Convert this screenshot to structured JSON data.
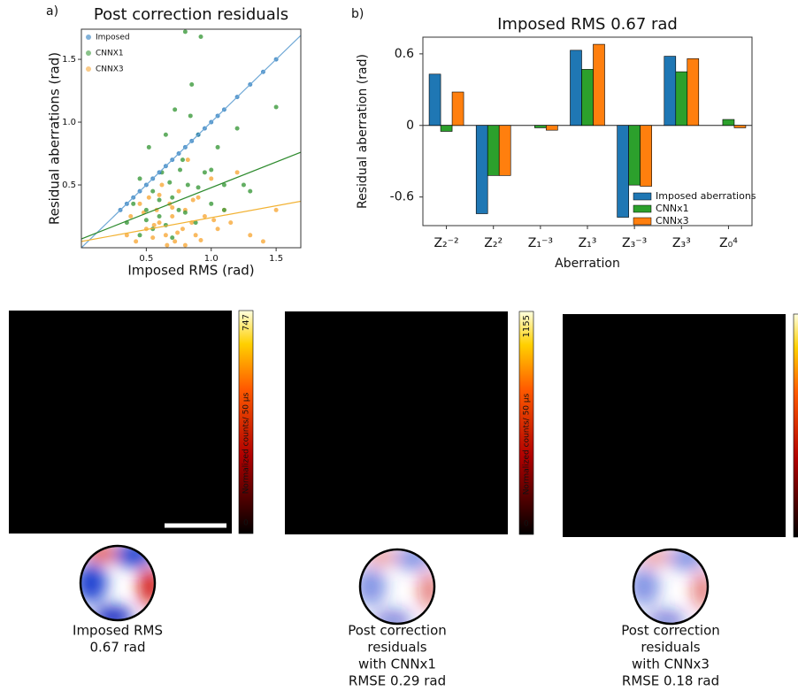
{
  "chart_data": [
    {
      "type": "scatter",
      "panel_label": "a)",
      "title": "Post correction residuals",
      "xlabel": "Imposed RMS (rad)",
      "ylabel": "Residual aberrations (rad)",
      "xlim": [
        0,
        1.69
      ],
      "ylim": [
        0,
        1.74
      ],
      "xticks": [
        0.5,
        {
          "value": 1,
          "label": "1.0"
        },
        1.5
      ],
      "yticks": [
        0.5,
        {
          "value": 1,
          "label": "1.0"
        },
        1.5
      ],
      "legend": "upper left",
      "series": [
        {
          "name": "Imposed",
          "color": "#2e7ebf",
          "line_color": "#6fa8d6",
          "x": [
            0.3,
            0.35,
            0.4,
            0.45,
            0.5,
            0.55,
            0.6,
            0.65,
            0.7,
            0.75,
            0.8,
            0.85,
            0.9,
            0.95,
            1.0,
            1.05,
            1.1,
            1.2,
            1.3,
            1.4,
            1.5
          ],
          "y": [
            0.3,
            0.35,
            0.4,
            0.45,
            0.5,
            0.55,
            0.6,
            0.65,
            0.7,
            0.75,
            0.8,
            0.85,
            0.9,
            0.95,
            1.0,
            1.05,
            1.1,
            1.2,
            1.3,
            1.4,
            1.5
          ],
          "fit": {
            "x": [
              0,
              1.69
            ],
            "y": [
              0,
              1.69
            ]
          }
        },
        {
          "name": "CNNX1",
          "color": "#3c9a3c",
          "line_color": "#2e8b2e",
          "x": [
            0.35,
            0.4,
            0.45,
            0.5,
            0.52,
            0.55,
            0.6,
            0.62,
            0.65,
            0.7,
            0.72,
            0.75,
            0.78,
            0.8,
            0.82,
            0.85,
            0.88,
            0.9,
            0.95,
            1.0,
            1.05,
            1.1,
            1.2,
            1.3,
            1.5,
            0.45,
            0.55,
            0.6,
            0.68,
            0.7,
            0.76,
            0.8,
            0.84,
            0.9,
            0.92,
            1.0,
            1.1,
            1.25,
            0.5,
            0.65
          ],
          "y": [
            0.2,
            0.35,
            0.55,
            0.3,
            0.8,
            0.45,
            0.25,
            0.6,
            0.9,
            0.4,
            1.1,
            0.3,
            0.7,
            1.72,
            0.5,
            1.3,
            0.2,
            0.9,
            0.6,
            0.35,
            0.8,
            0.5,
            0.95,
            0.45,
            1.12,
            0.1,
            0.15,
            0.38,
            0.52,
            0.08,
            0.62,
            0.28,
            1.05,
            0.48,
            1.68,
            0.62,
            0.3,
            0.5,
            0.22,
            0.18
          ],
          "fit": {
            "x": [
              0,
              1.69
            ],
            "y": [
              0.07,
              0.76
            ]
          }
        },
        {
          "name": "CNNX3",
          "color": "#f7a93a",
          "line_color": "#f2b233",
          "x": [
            0.35,
            0.38,
            0.42,
            0.45,
            0.5,
            0.52,
            0.55,
            0.58,
            0.6,
            0.62,
            0.65,
            0.68,
            0.7,
            0.72,
            0.75,
            0.78,
            0.8,
            0.82,
            0.85,
            0.88,
            0.9,
            0.95,
            1.0,
            1.05,
            1.1,
            1.15,
            1.2,
            1.3,
            1.4,
            1.5,
            0.48,
            0.56,
            0.66,
            0.74,
            0.86,
            0.92,
            1.02,
            0.6,
            0.7,
            0.8
          ],
          "y": [
            0.1,
            0.25,
            0.05,
            0.35,
            0.15,
            0.4,
            0.08,
            0.3,
            0.2,
            0.5,
            0.1,
            0.35,
            0.25,
            0.05,
            0.45,
            0.15,
            0.3,
            0.7,
            0.2,
            0.1,
            0.4,
            0.25,
            0.55,
            0.15,
            0.3,
            0.2,
            0.6,
            0.1,
            0.05,
            0.3,
            0.28,
            0.18,
            0.02,
            0.12,
            0.38,
            0.06,
            0.22,
            0.42,
            0.32,
            0.02
          ],
          "fit": {
            "x": [
              0,
              1.69
            ],
            "y": [
              0.05,
              0.37
            ]
          }
        }
      ]
    },
    {
      "type": "bar",
      "panel_label": "b)",
      "title": "Imposed RMS 0.67 rad",
      "xlabel": "Aberration",
      "ylabel": "Residual aberration (rad)",
      "categories": [
        "Z₂⁻²",
        "Z₂²",
        "Z₁⁻³",
        "Z₁³",
        "Z₃⁻³",
        "Z₃³",
        "Z₀⁴"
      ],
      "ylim": [
        -0.84,
        0.74
      ],
      "yticks": [
        {
          "value": 0.6,
          "label": "0.6"
        },
        0,
        {
          "value": -0.6,
          "label": "-0.6"
        }
      ],
      "legend": "lower right",
      "series": [
        {
          "name": "Imposed aberrations",
          "color": "#1f77b4",
          "values": [
            0.43,
            -0.74,
            0,
            0.63,
            -0.77,
            0.58,
            0
          ]
        },
        {
          "name": "CNNx1",
          "color": "#2ca02c",
          "values": [
            -0.05,
            -0.42,
            -0.02,
            0.47,
            -0.5,
            0.45,
            0.05
          ]
        },
        {
          "name": "CNNx3",
          "color": "#ff7f0e",
          "values": [
            0.28,
            -0.42,
            -0.04,
            0.68,
            -0.51,
            0.56,
            -0.02
          ]
        }
      ]
    }
  ],
  "images": [
    {
      "colorbar_max": 747,
      "colorbar_min": 0,
      "colorbar_label": "Normalized counts/ 50 µs",
      "caption": [
        "Imposed RMS",
        "0.67 rad"
      ]
    },
    {
      "colorbar_max": 1155,
      "colorbar_min": 0,
      "colorbar_label": "Normalized counts/ 50 µs",
      "caption": [
        "Post correction",
        "residuals",
        "with CNNx1",
        "RMSE 0.29 rad"
      ]
    },
    {
      "caption": [
        "Post correction",
        "residuals",
        "with CNNx3",
        "RMSE 0.18 rad"
      ]
    }
  ]
}
